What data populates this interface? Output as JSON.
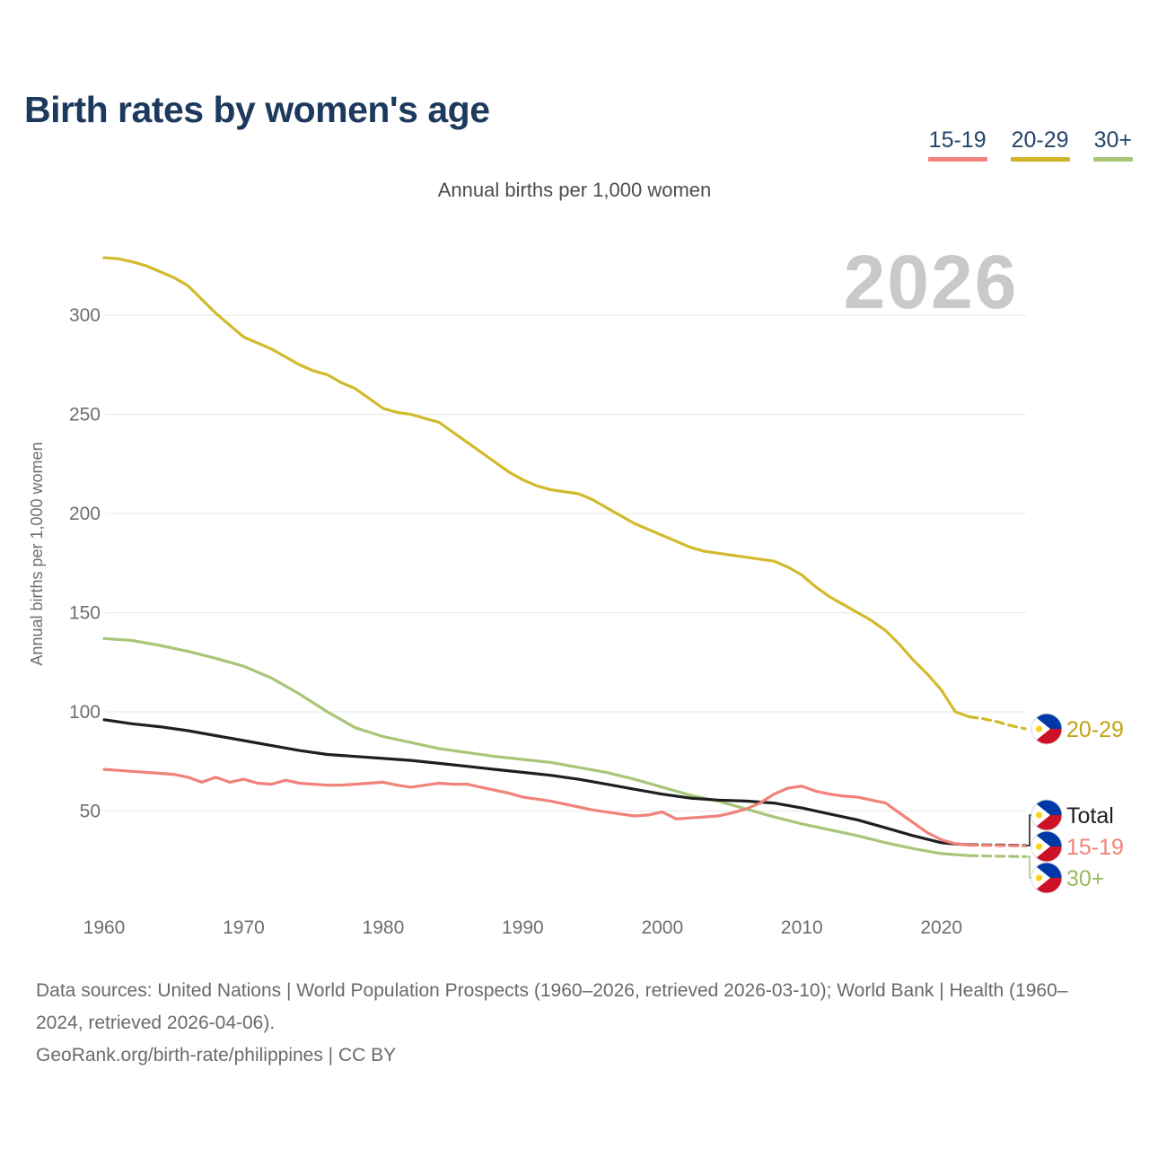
{
  "header": {
    "title": "Birth rates by women's age"
  },
  "legend": {
    "items": [
      {
        "label": "15-19",
        "color": "#f0837b"
      },
      {
        "label": "20-29",
        "color": "#d0b428"
      },
      {
        "label": "30+",
        "color": "#a8c578"
      }
    ]
  },
  "subtitle": "Annual births per 1,000 women",
  "watermark": "2026",
  "footer": {
    "sources": "Data sources: United Nations | World Population Prospects (1960–2026, retrieved 2026-03-10); World Bank | Health (1960–2024, retrieved 2026-04-06).",
    "attribution": "GeoRank.org/birth-rate/philippines | CC BY"
  },
  "flag": {
    "name": "philippines-flag",
    "blue": "#0038a8",
    "red": "#ce1126",
    "white": "#ffffff",
    "sun": "#fcd116"
  },
  "chart_data": {
    "type": "line",
    "title": "Birth rates by women's age",
    "subtitle": "Annual births per 1,000 women",
    "ylabel": "Annual births per 1,000 women",
    "xlabel": "",
    "xlim": [
      1960,
      2026
    ],
    "ylim": [
      0,
      340
    ],
    "x_ticks": [
      1960,
      1970,
      1980,
      1990,
      2000,
      2010,
      2020
    ],
    "y_ticks": [
      50,
      100,
      150,
      200,
      250,
      300
    ],
    "grid": "horizontal",
    "legend_position": "top-right",
    "projection_start": 2022,
    "series": [
      {
        "name": "30+",
        "end_label": "30+",
        "color": "#a8c578",
        "label_color": "#9abc5c",
        "points": [
          [
            1960,
            137
          ],
          [
            1962,
            136
          ],
          [
            1964,
            133.5
          ],
          [
            1966,
            130.5
          ],
          [
            1968,
            127
          ],
          [
            1970,
            123
          ],
          [
            1972,
            117
          ],
          [
            1974,
            109
          ],
          [
            1976,
            100
          ],
          [
            1978,
            92
          ],
          [
            1980,
            87.5
          ],
          [
            1982,
            84.5
          ],
          [
            1984,
            81.5
          ],
          [
            1986,
            79.5
          ],
          [
            1988,
            77.5
          ],
          [
            1990,
            76
          ],
          [
            1992,
            74.5
          ],
          [
            1994,
            72
          ],
          [
            1996,
            69.5
          ],
          [
            1998,
            66
          ],
          [
            2000,
            62
          ],
          [
            2002,
            58
          ],
          [
            2004,
            55
          ],
          [
            2006,
            51
          ],
          [
            2008,
            47
          ],
          [
            2010,
            43.5
          ],
          [
            2012,
            40.5
          ],
          [
            2014,
            37.5
          ],
          [
            2016,
            34
          ],
          [
            2018,
            31
          ],
          [
            2020,
            28.5
          ],
          [
            2022,
            27.5
          ],
          [
            2024,
            27.2
          ],
          [
            2026,
            27
          ]
        ]
      },
      {
        "name": "Total",
        "end_label": "Total",
        "color": "#1f1f1f",
        "label_color": "#1f1f1f",
        "points": [
          [
            1960,
            96
          ],
          [
            1962,
            94
          ],
          [
            1964,
            92.5
          ],
          [
            1966,
            90.5
          ],
          [
            1968,
            88
          ],
          [
            1970,
            85.5
          ],
          [
            1972,
            83
          ],
          [
            1974,
            80.5
          ],
          [
            1976,
            78.5
          ],
          [
            1978,
            77.5
          ],
          [
            1980,
            76.5
          ],
          [
            1982,
            75.5
          ],
          [
            1984,
            74
          ],
          [
            1986,
            72.5
          ],
          [
            1988,
            71
          ],
          [
            1990,
            69.5
          ],
          [
            1992,
            68
          ],
          [
            1994,
            66
          ],
          [
            1996,
            63.5
          ],
          [
            1998,
            61
          ],
          [
            2000,
            58.5
          ],
          [
            2002,
            56.5
          ],
          [
            2004,
            55.5
          ],
          [
            2006,
            55
          ],
          [
            2008,
            54
          ],
          [
            2010,
            51.5
          ],
          [
            2012,
            48.5
          ],
          [
            2014,
            45.5
          ],
          [
            2016,
            41.5
          ],
          [
            2018,
            37.5
          ],
          [
            2020,
            34
          ],
          [
            2021,
            33.3
          ],
          [
            2022,
            33
          ],
          [
            2024,
            32.8
          ],
          [
            2026,
            32.6
          ]
        ]
      },
      {
        "name": "15-19",
        "end_label": "15-19",
        "color": "#f0827a",
        "label_color": "#ef837b",
        "points": [
          [
            1960,
            71
          ],
          [
            1961,
            70.5
          ],
          [
            1962,
            70
          ],
          [
            1963,
            69.5
          ],
          [
            1964,
            69
          ],
          [
            1965,
            68.5
          ],
          [
            1966,
            67
          ],
          [
            1967,
            64.5
          ],
          [
            1968,
            67
          ],
          [
            1969,
            64.5
          ],
          [
            1970,
            66
          ],
          [
            1971,
            64
          ],
          [
            1972,
            63.5
          ],
          [
            1973,
            65.5
          ],
          [
            1974,
            64
          ],
          [
            1975,
            63.5
          ],
          [
            1976,
            63
          ],
          [
            1977,
            63
          ],
          [
            1978,
            63.5
          ],
          [
            1979,
            64
          ],
          [
            1980,
            64.5
          ],
          [
            1981,
            63
          ],
          [
            1982,
            62
          ],
          [
            1983,
            63
          ],
          [
            1984,
            64
          ],
          [
            1985,
            63.5
          ],
          [
            1986,
            63.5
          ],
          [
            1987,
            62
          ],
          [
            1988,
            60.5
          ],
          [
            1989,
            59
          ],
          [
            1990,
            57
          ],
          [
            1991,
            56
          ],
          [
            1992,
            55
          ],
          [
            1993,
            53.5
          ],
          [
            1994,
            52
          ],
          [
            1995,
            50.5
          ],
          [
            1996,
            49.5
          ],
          [
            1997,
            48.5
          ],
          [
            1998,
            47.5
          ],
          [
            1999,
            48
          ],
          [
            2000,
            49.5
          ],
          [
            2001,
            46
          ],
          [
            2002,
            46.5
          ],
          [
            2003,
            47
          ],
          [
            2004,
            47.5
          ],
          [
            2005,
            49
          ],
          [
            2006,
            51
          ],
          [
            2007,
            54
          ],
          [
            2008,
            58.5
          ],
          [
            2009,
            61.5
          ],
          [
            2010,
            62.5
          ],
          [
            2011,
            60
          ],
          [
            2012,
            58.5
          ],
          [
            2013,
            57.5
          ],
          [
            2014,
            57
          ],
          [
            2015,
            55.5
          ],
          [
            2016,
            54
          ],
          [
            2017,
            49
          ],
          [
            2018,
            44
          ],
          [
            2019,
            39
          ],
          [
            2020,
            35.5
          ],
          [
            2021,
            33.5
          ],
          [
            2022,
            32.8
          ],
          [
            2024,
            32.6
          ],
          [
            2026,
            32.4
          ]
        ]
      },
      {
        "name": "20-29",
        "end_label": "20-29",
        "color": "#d3ba2c",
        "label_color": "#c2a413",
        "points": [
          [
            1960,
            329
          ],
          [
            1961,
            328.5
          ],
          [
            1962,
            327
          ],
          [
            1963,
            325
          ],
          [
            1964,
            322
          ],
          [
            1965,
            319
          ],
          [
            1966,
            315
          ],
          [
            1967,
            308
          ],
          [
            1968,
            301
          ],
          [
            1969,
            295
          ],
          [
            1970,
            289
          ],
          [
            1971,
            286
          ],
          [
            1972,
            283
          ],
          [
            1973,
            279
          ],
          [
            1974,
            275
          ],
          [
            1975,
            272
          ],
          [
            1976,
            270
          ],
          [
            1977,
            266
          ],
          [
            1978,
            263
          ],
          [
            1979,
            258
          ],
          [
            1980,
            253
          ],
          [
            1981,
            251
          ],
          [
            1982,
            250
          ],
          [
            1983,
            248
          ],
          [
            1984,
            246
          ],
          [
            1985,
            241
          ],
          [
            1986,
            236
          ],
          [
            1987,
            231
          ],
          [
            1988,
            226
          ],
          [
            1989,
            221
          ],
          [
            1990,
            217
          ],
          [
            1991,
            214
          ],
          [
            1992,
            212
          ],
          [
            1993,
            211
          ],
          [
            1994,
            210
          ],
          [
            1995,
            207
          ],
          [
            1996,
            203
          ],
          [
            1997,
            199
          ],
          [
            1998,
            195
          ],
          [
            1999,
            192
          ],
          [
            2000,
            189
          ],
          [
            2001,
            186
          ],
          [
            2002,
            183
          ],
          [
            2003,
            181
          ],
          [
            2004,
            180
          ],
          [
            2005,
            179
          ],
          [
            2006,
            178
          ],
          [
            2007,
            177
          ],
          [
            2008,
            176
          ],
          [
            2009,
            173
          ],
          [
            2010,
            169
          ],
          [
            2011,
            163
          ],
          [
            2012,
            158
          ],
          [
            2013,
            154
          ],
          [
            2014,
            150
          ],
          [
            2015,
            146
          ],
          [
            2016,
            141
          ],
          [
            2017,
            134
          ],
          [
            2018,
            126
          ],
          [
            2019,
            119
          ],
          [
            2020,
            111
          ],
          [
            2021,
            100
          ],
          [
            2022,
            97.5
          ],
          [
            2023,
            96.5
          ],
          [
            2024,
            95
          ],
          [
            2025,
            93
          ],
          [
            2026,
            91.5
          ]
        ]
      }
    ]
  }
}
